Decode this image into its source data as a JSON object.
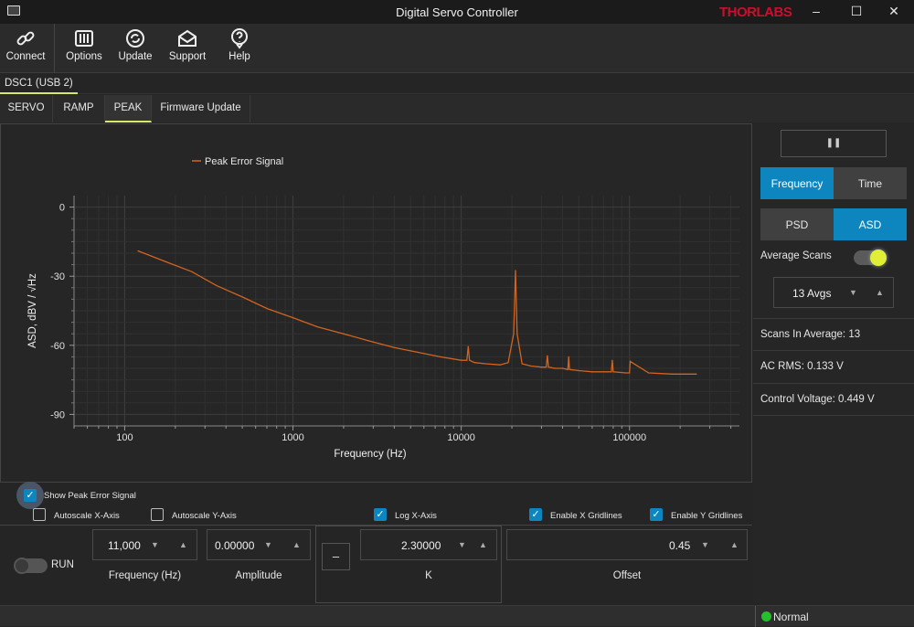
{
  "window": {
    "title": "Digital Servo Controller",
    "brand": "THORLABS",
    "minimize": "–",
    "maximize": "☐",
    "close": "✕"
  },
  "toolbar": {
    "connect": "Connect",
    "options": "Options",
    "update": "Update",
    "support": "Support",
    "help": "Help"
  },
  "device_tab": "DSC1 (USB 2)",
  "tabs": [
    "SERVO",
    "RAMP",
    "PEAK",
    "Firmware Update"
  ],
  "active_tab": "PEAK",
  "chart_data": {
    "type": "line",
    "legend": "Peak Error Signal",
    "xlabel": "Frequency (Hz)",
    "ylabel": "ASD, dBV / √Hz",
    "x_scale": "log",
    "xlim": [
      50,
      450000
    ],
    "ylim": [
      -95,
      5
    ],
    "x_ticks": [
      {
        "v": 100,
        "l": "100"
      },
      {
        "v": 1000,
        "l": "1000"
      },
      {
        "v": 10000,
        "l": "10000"
      },
      {
        "v": 100000,
        "l": "100000"
      }
    ],
    "y_ticks": [
      {
        "v": 0,
        "l": "0"
      },
      {
        "v": -30,
        "l": "-30"
      },
      {
        "v": -60,
        "l": "-60"
      },
      {
        "v": -90,
        "l": "-90"
      }
    ],
    "grid": true,
    "color": "#d2641e",
    "series": [
      {
        "name": "Peak Error Signal",
        "x": [
          120,
          180,
          250,
          350,
          500,
          700,
          1000,
          1400,
          2000,
          2800,
          4000,
          5500,
          7500,
          10000,
          10800,
          11000,
          11200,
          12000,
          14000,
          17000,
          19000,
          20500,
          21000,
          21500,
          23000,
          26000,
          30000,
          32000,
          32500,
          33000,
          36000,
          40000,
          43000,
          43500,
          44000,
          50000,
          60000,
          78000,
          79000,
          80000,
          95000,
          100000,
          101000,
          130000,
          180000,
          250000
        ],
        "y": [
          -19,
          -24,
          -28,
          -34,
          -39,
          -44,
          -48,
          -52,
          -55,
          -58,
          -61,
          -63,
          -65,
          -66.5,
          -66.5,
          -60.5,
          -66.5,
          -67.5,
          -68,
          -68.5,
          -67.5,
          -55,
          -27.5,
          -55,
          -68,
          -69,
          -69.5,
          -69.5,
          -64.5,
          -69.5,
          -70,
          -70,
          -70.5,
          -65,
          -70.5,
          -71,
          -71.5,
          -71.5,
          -66.5,
          -71.5,
          -72,
          -72,
          -67,
          -72,
          -72.5,
          -72.5
        ]
      }
    ]
  },
  "side": {
    "pause_icon": "pause-icon",
    "frequency": "Frequency",
    "time": "Time",
    "psd": "PSD",
    "asd": "ASD",
    "average_scans": "Average Scans",
    "avgs": "13 Avgs",
    "scans_in_average": "Scans In Average: 13",
    "ac_rms": "AC RMS: 0.133 V",
    "control_voltage": "Control Voltage: 0.449 V",
    "accent": "#0d86bf"
  },
  "options": {
    "show_peak": "Show Peak Error Signal",
    "autoscale_x": "Autoscale X-Axis",
    "autoscale_y": "Autoscale Y-Axis",
    "log_x": "Log X-Axis",
    "grid_x": "Enable X Gridlines",
    "grid_y": "Enable Y Gridlines"
  },
  "controls": {
    "run": "RUN",
    "frequency_value": "11,000",
    "frequency_label": "Frequency (Hz)",
    "amplitude_value": "0.00000",
    "amplitude_label": "Amplitude",
    "sign": "–",
    "k_value": "2.30000",
    "k_label": "K",
    "offset_value": "0.45",
    "offset_label": "Offset",
    "down": "▼",
    "up": "▲"
  },
  "status": {
    "text": "Normal",
    "color": "#22c02a"
  }
}
